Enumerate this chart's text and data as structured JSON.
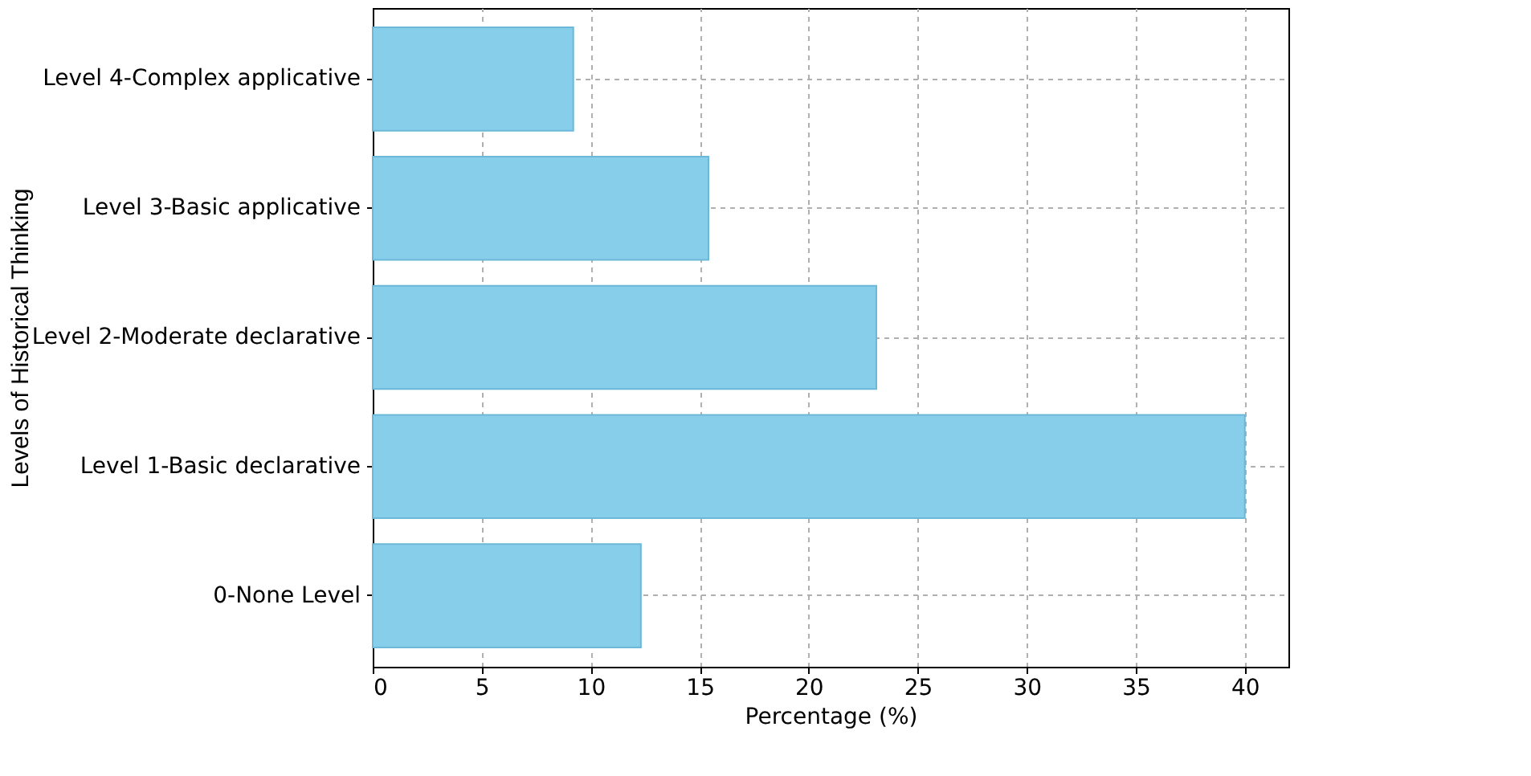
{
  "chart_data": {
    "type": "bar",
    "orientation": "horizontal",
    "ylabel": "Levels of Historical Thinking",
    "xlabel": "Percentage (%)",
    "categories": [
      "Level 4-Complex applicative",
      "Level 3-Basic applicative",
      "Level 2-Moderate declarative",
      "Level 1-Basic declarative",
      "0-None Level"
    ],
    "values": [
      9.2,
      15.4,
      23.1,
      40,
      12.3
    ],
    "color": "#87ceeb",
    "xlim": [
      0,
      42
    ],
    "xticks": [
      0,
      5,
      10,
      15,
      20,
      25,
      30,
      35,
      40
    ],
    "grid": true
  }
}
